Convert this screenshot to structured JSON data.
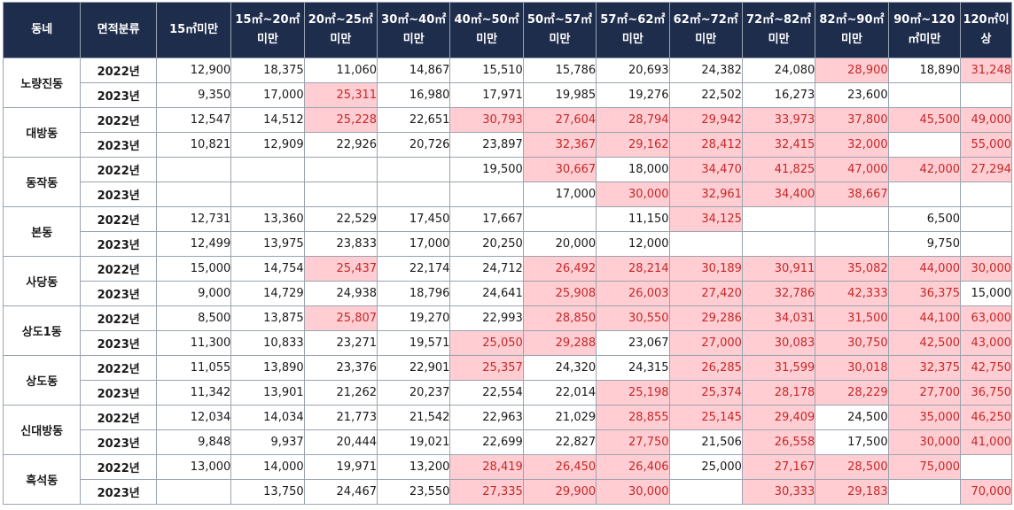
{
  "table": {
    "headers": [
      "동네",
      "면적분류",
      "15㎡미만",
      "15㎡~20㎡미만",
      "20㎡~25㎡미만",
      "30㎡~40㎡미만",
      "40㎡~50㎡미만",
      "50㎡~57㎡미만",
      "57㎡~62㎡미만",
      "62㎡~72㎡미만",
      "72㎡~82㎡미만",
      "82㎡~90㎡미만",
      "90㎡~120㎡미만",
      "120㎡이상"
    ],
    "highlight_bg": "#ffcdd2",
    "highlight_text": "#c62828",
    "header_bg": "#1f2d4d",
    "groups": [
      {
        "dong": "노량진동",
        "rows": [
          {
            "year": "2022년",
            "values": [
              "12,900",
              "18,375",
              "11,060",
              "14,867",
              "15,510",
              "15,786",
              "20,693",
              "24,382",
              "24,080",
              "28,900",
              "18,890",
              "31,248"
            ],
            "highlight": [
              false,
              false,
              false,
              false,
              false,
              false,
              false,
              false,
              false,
              true,
              false,
              true
            ]
          },
          {
            "year": "2023년",
            "values": [
              "9,350",
              "17,000",
              "25,311",
              "16,980",
              "17,971",
              "19,985",
              "19,276",
              "22,502",
              "16,273",
              "23,600",
              "",
              ""
            ],
            "highlight": [
              false,
              false,
              true,
              false,
              false,
              false,
              false,
              false,
              false,
              false,
              false,
              false
            ]
          }
        ]
      },
      {
        "dong": "대방동",
        "rows": [
          {
            "year": "2022년",
            "values": [
              "12,547",
              "14,512",
              "25,228",
              "22,651",
              "30,793",
              "27,604",
              "28,794",
              "29,942",
              "33,973",
              "37,800",
              "45,500",
              "49,000"
            ],
            "highlight": [
              false,
              false,
              true,
              false,
              true,
              true,
              true,
              true,
              true,
              true,
              true,
              true
            ]
          },
          {
            "year": "2023년",
            "values": [
              "10,821",
              "12,909",
              "22,926",
              "20,726",
              "23,897",
              "32,367",
              "29,162",
              "28,412",
              "32,415",
              "32,000",
              "",
              "55,000"
            ],
            "highlight": [
              false,
              false,
              false,
              false,
              false,
              true,
              true,
              true,
              true,
              true,
              false,
              true
            ]
          }
        ]
      },
      {
        "dong": "동작동",
        "rows": [
          {
            "year": "2022년",
            "values": [
              "",
              "",
              "",
              "",
              "19,500",
              "30,667",
              "18,000",
              "34,470",
              "41,825",
              "47,000",
              "42,000",
              "27,294"
            ],
            "highlight": [
              false,
              false,
              false,
              false,
              false,
              true,
              false,
              true,
              true,
              true,
              true,
              true
            ]
          },
          {
            "year": "2023년",
            "values": [
              "",
              "",
              "",
              "",
              "",
              "17,000",
              "30,000",
              "32,961",
              "34,400",
              "38,667",
              "",
              ""
            ],
            "highlight": [
              false,
              false,
              false,
              false,
              false,
              false,
              true,
              true,
              true,
              true,
              false,
              false
            ]
          }
        ]
      },
      {
        "dong": "본동",
        "rows": [
          {
            "year": "2022년",
            "values": [
              "12,731",
              "13,360",
              "22,529",
              "17,450",
              "17,667",
              "",
              "11,150",
              "34,125",
              "",
              "",
              "6,500",
              ""
            ],
            "highlight": [
              false,
              false,
              false,
              false,
              false,
              false,
              false,
              true,
              false,
              false,
              false,
              false
            ]
          },
          {
            "year": "2023년",
            "values": [
              "12,499",
              "13,975",
              "23,833",
              "17,000",
              "20,250",
              "20,000",
              "12,000",
              "",
              "",
              "",
              "9,750",
              ""
            ],
            "highlight": [
              false,
              false,
              false,
              false,
              false,
              false,
              false,
              false,
              false,
              false,
              false,
              false
            ]
          }
        ]
      },
      {
        "dong": "사당동",
        "rows": [
          {
            "year": "2022년",
            "values": [
              "15,000",
              "14,754",
              "25,437",
              "22,174",
              "24,712",
              "26,492",
              "28,214",
              "30,189",
              "30,911",
              "35,082",
              "44,000",
              "30,000"
            ],
            "highlight": [
              false,
              false,
              true,
              false,
              false,
              true,
              true,
              true,
              true,
              true,
              true,
              true
            ]
          },
          {
            "year": "2023년",
            "values": [
              "9,000",
              "14,729",
              "24,938",
              "18,796",
              "24,641",
              "25,908",
              "26,003",
              "27,420",
              "32,786",
              "42,333",
              "36,375",
              "15,000"
            ],
            "highlight": [
              false,
              false,
              false,
              false,
              false,
              true,
              true,
              true,
              true,
              true,
              true,
              false
            ]
          }
        ]
      },
      {
        "dong": "상도1동",
        "rows": [
          {
            "year": "2022년",
            "values": [
              "8,500",
              "13,875",
              "25,807",
              "19,270",
              "22,993",
              "28,850",
              "30,550",
              "29,286",
              "34,031",
              "31,500",
              "44,100",
              "63,000"
            ],
            "highlight": [
              false,
              false,
              true,
              false,
              false,
              true,
              true,
              true,
              true,
              true,
              true,
              true
            ]
          },
          {
            "year": "2023년",
            "values": [
              "11,300",
              "10,833",
              "23,271",
              "19,571",
              "25,050",
              "29,288",
              "23,067",
              "27,000",
              "30,083",
              "30,750",
              "42,500",
              "43,000"
            ],
            "highlight": [
              false,
              false,
              false,
              false,
              true,
              true,
              false,
              true,
              true,
              true,
              true,
              true
            ]
          }
        ]
      },
      {
        "dong": "상도동",
        "rows": [
          {
            "year": "2022년",
            "values": [
              "11,055",
              "13,890",
              "23,376",
              "22,901",
              "25,357",
              "24,320",
              "24,315",
              "26,285",
              "31,599",
              "30,018",
              "32,375",
              "42,750"
            ],
            "highlight": [
              false,
              false,
              false,
              false,
              true,
              false,
              false,
              true,
              true,
              true,
              true,
              true
            ]
          },
          {
            "year": "2023년",
            "values": [
              "11,342",
              "13,901",
              "21,262",
              "20,237",
              "22,554",
              "22,014",
              "25,198",
              "25,374",
              "28,178",
              "28,229",
              "27,700",
              "36,750"
            ],
            "highlight": [
              false,
              false,
              false,
              false,
              false,
              false,
              true,
              true,
              true,
              true,
              true,
              true
            ]
          }
        ]
      },
      {
        "dong": "신대방동",
        "rows": [
          {
            "year": "2022년",
            "values": [
              "12,034",
              "14,034",
              "21,773",
              "21,542",
              "22,963",
              "21,029",
              "28,855",
              "25,145",
              "29,409",
              "24,500",
              "35,000",
              "46,250"
            ],
            "highlight": [
              false,
              false,
              false,
              false,
              false,
              false,
              true,
              true,
              true,
              false,
              true,
              true
            ]
          },
          {
            "year": "2023년",
            "values": [
              "9,848",
              "9,937",
              "20,444",
              "19,021",
              "22,699",
              "22,827",
              "27,750",
              "21,506",
              "26,558",
              "17,500",
              "30,000",
              "41,000"
            ],
            "highlight": [
              false,
              false,
              false,
              false,
              false,
              false,
              true,
              false,
              true,
              false,
              true,
              true
            ]
          }
        ]
      },
      {
        "dong": "흑석동",
        "rows": [
          {
            "year": "2022년",
            "values": [
              "13,000",
              "14,000",
              "19,971",
              "13,200",
              "28,419",
              "26,450",
              "26,406",
              "25,000",
              "27,167",
              "28,500",
              "75,000",
              ""
            ],
            "highlight": [
              false,
              false,
              false,
              false,
              true,
              true,
              true,
              false,
              true,
              true,
              true,
              false
            ]
          },
          {
            "year": "2023년",
            "values": [
              "",
              "13,750",
              "24,467",
              "23,550",
              "27,335",
              "29,900",
              "30,000",
              "",
              "30,333",
              "29,183",
              "",
              "70,000"
            ],
            "highlight": [
              false,
              false,
              false,
              false,
              true,
              true,
              true,
              false,
              true,
              true,
              false,
              true
            ]
          }
        ]
      }
    ]
  }
}
